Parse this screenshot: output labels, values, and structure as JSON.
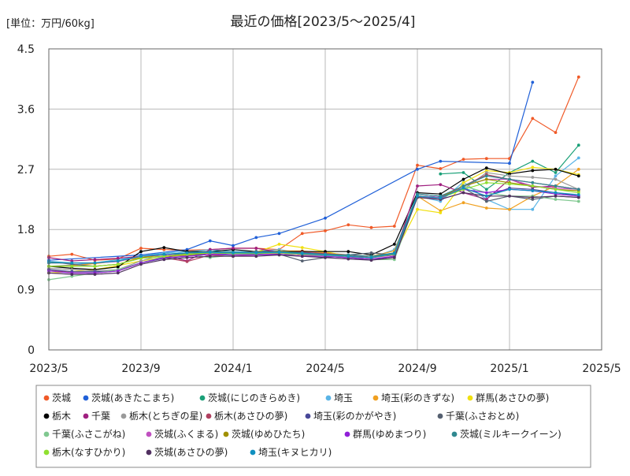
{
  "chart_data": {
    "type": "line",
    "title": "最近の価格[2023/5～2025/4]",
    "unit_label": "[単位：万円/60kg]",
    "x_ticks": [
      "2023/5",
      "2023/9",
      "2024/1",
      "2024/5",
      "2024/9",
      "2025/1",
      "2025/5"
    ],
    "y_ticks": [
      "0",
      "0.9",
      "1.8",
      "2.7",
      "3.6",
      "4.5"
    ],
    "ylim": [
      0,
      4.5
    ],
    "grid": true,
    "legend_position": "bottom",
    "x_months": [
      0,
      1,
      2,
      3,
      4,
      5,
      6,
      7,
      8,
      9,
      10,
      11,
      12,
      13,
      14,
      15,
      16,
      17,
      18,
      19,
      20,
      21,
      22,
      23
    ],
    "series": [
      {
        "name": "茨城",
        "color": "#f05a28",
        "values": [
          1.4,
          1.43,
          1.34,
          1.36,
          1.52,
          1.5,
          1.49,
          1.5,
          1.52,
          1.52,
          1.5,
          1.74,
          1.78,
          1.87,
          1.83,
          1.85,
          2.76,
          2.71,
          2.85,
          2.86,
          2.86,
          3.46,
          3.25,
          4.08
        ]
      },
      {
        "name": "茨城(あきたこまち)",
        "color": "#2060d8",
        "values": [
          1.34,
          null,
          null,
          null,
          1.42,
          null,
          1.5,
          1.63,
          1.56,
          1.68,
          1.74,
          null,
          1.97,
          null,
          null,
          null,
          2.7,
          2.82,
          null,
          null,
          2.79,
          4.0,
          null,
          null
        ]
      },
      {
        "name": "茨城(にじのきらめき)",
        "color": "#1aa078",
        "values": [
          null,
          null,
          null,
          null,
          null,
          null,
          null,
          null,
          null,
          null,
          null,
          null,
          null,
          null,
          null,
          null,
          null,
          2.63,
          2.65,
          2.4,
          2.65,
          2.82,
          2.65,
          3.06
        ]
      },
      {
        "name": "埼玉",
        "color": "#5ab4e6",
        "values": [
          1.25,
          1.27,
          1.3,
          1.35,
          1.4,
          1.45,
          1.47,
          1.5,
          1.47,
          1.47,
          1.5,
          1.45,
          1.42,
          1.4,
          1.38,
          1.5,
          2.3,
          2.22,
          2.51,
          2.25,
          2.1,
          2.1,
          2.6,
          2.87
        ]
      },
      {
        "name": "埼玉(彩のきずな)",
        "color": "#f0a020",
        "values": [
          1.25,
          1.26,
          1.29,
          1.33,
          1.38,
          1.43,
          1.44,
          1.47,
          1.46,
          1.46,
          1.48,
          1.48,
          1.45,
          1.42,
          1.4,
          1.48,
          2.3,
          2.08,
          2.2,
          2.12,
          2.1,
          2.3,
          2.45,
          2.7
        ]
      },
      {
        "name": "群馬(あさひの夢)",
        "color": "#f0e010",
        "values": [
          1.15,
          1.17,
          1.2,
          1.26,
          1.33,
          1.39,
          1.42,
          1.45,
          1.45,
          1.46,
          1.58,
          1.53,
          1.47,
          1.4,
          1.38,
          1.43,
          2.1,
          2.05,
          2.5,
          2.68,
          2.65,
          2.73,
          2.7,
          2.62
        ]
      },
      {
        "name": "栃木",
        "color": "#000000",
        "values": [
          1.25,
          1.22,
          1.2,
          1.24,
          1.47,
          1.53,
          1.47,
          1.47,
          1.5,
          1.47,
          1.47,
          1.47,
          1.47,
          1.47,
          1.42,
          1.58,
          2.35,
          2.33,
          2.55,
          2.72,
          2.63,
          2.68,
          2.7,
          2.6
        ]
      },
      {
        "name": "千葉",
        "color": "#a02080",
        "values": [
          1.38,
          1.33,
          1.35,
          1.37,
          1.4,
          1.42,
          1.33,
          1.5,
          1.52,
          1.52,
          1.46,
          1.46,
          1.44,
          1.42,
          1.38,
          1.42,
          2.45,
          2.47,
          2.35,
          2.25,
          2.55,
          2.43,
          2.45,
          2.4
        ]
      },
      {
        "name": "栃木(とちぎの星)",
        "color": "#9a9a9a",
        "values": [
          1.22,
          1.2,
          1.18,
          1.2,
          1.33,
          1.43,
          1.45,
          1.47,
          1.45,
          1.47,
          1.45,
          1.45,
          1.4,
          1.4,
          1.35,
          1.4,
          2.3,
          2.28,
          2.4,
          2.65,
          2.6,
          2.58,
          2.55,
          2.4
        ]
      },
      {
        "name": "栃木(あさひの夢)",
        "color": "#b04060",
        "values": [
          1.2,
          1.15,
          1.15,
          1.18,
          1.3,
          1.38,
          1.32,
          1.42,
          1.4,
          1.42,
          1.45,
          1.42,
          1.4,
          1.38,
          1.35,
          1.4,
          2.3,
          2.28,
          2.45,
          2.62,
          2.55,
          2.5,
          2.45,
          2.4
        ]
      },
      {
        "name": "埼玉(彩のかがやき)",
        "color": "#484898",
        "values": [
          1.2,
          1.17,
          1.17,
          1.18,
          1.3,
          1.37,
          1.4,
          1.45,
          1.42,
          1.43,
          1.45,
          1.42,
          1.4,
          1.38,
          1.35,
          1.4,
          2.3,
          2.28,
          2.42,
          2.3,
          2.42,
          2.4,
          2.35,
          2.3
        ]
      },
      {
        "name": "千葉(ふさおとめ)",
        "color": "#556070",
        "values": [
          1.32,
          1.28,
          1.25,
          1.28,
          1.37,
          1.4,
          1.45,
          1.45,
          1.45,
          1.47,
          1.43,
          1.33,
          1.38,
          1.42,
          1.45,
          1.42,
          2.33,
          2.3,
          2.42,
          2.22,
          2.3,
          2.25,
          2.3,
          2.28
        ]
      },
      {
        "name": "千葉(ふさこがね)",
        "color": "#80c890",
        "values": [
          1.05,
          1.1,
          1.15,
          1.2,
          1.3,
          1.4,
          1.43,
          1.38,
          1.42,
          1.42,
          1.42,
          1.43,
          1.4,
          1.4,
          1.35,
          1.35,
          2.28,
          2.25,
          2.45,
          2.35,
          2.3,
          2.3,
          2.25,
          2.22
        ]
      },
      {
        "name": "茨城(ふくまる)",
        "color": "#c050c0",
        "values": [
          1.3,
          1.3,
          1.3,
          1.32,
          1.4,
          1.43,
          1.4,
          1.43,
          1.42,
          1.42,
          1.45,
          1.42,
          1.42,
          1.4,
          1.38,
          1.45,
          2.3,
          2.25,
          2.45,
          2.55,
          2.55,
          2.45,
          2.42,
          2.4
        ]
      },
      {
        "name": "茨城(ゆめひたち)",
        "color": "#a09000",
        "values": [
          1.25,
          1.25,
          1.25,
          1.28,
          1.38,
          1.4,
          1.42,
          1.45,
          1.45,
          1.45,
          1.47,
          1.45,
          1.43,
          1.4,
          1.38,
          1.45,
          2.3,
          2.28,
          2.45,
          2.55,
          2.5,
          2.45,
          2.4,
          2.38
        ]
      },
      {
        "name": "群馬(ゆめまつり)",
        "color": "#9020d8",
        "values": [
          1.18,
          1.15,
          1.15,
          1.18,
          1.3,
          1.38,
          1.4,
          1.43,
          1.42,
          1.42,
          1.43,
          1.4,
          1.4,
          1.38,
          1.36,
          1.4,
          2.3,
          2.28,
          2.4,
          2.35,
          2.4,
          2.38,
          2.33,
          2.3
        ]
      },
      {
        "name": "茨城(ミルキークイーン)",
        "color": "#308890",
        "values": [
          1.3,
          1.3,
          1.3,
          1.33,
          1.4,
          1.43,
          1.45,
          1.47,
          1.46,
          1.46,
          1.47,
          1.45,
          1.43,
          1.42,
          1.4,
          1.45,
          2.33,
          2.3,
          2.45,
          2.6,
          2.55,
          2.5,
          2.45,
          2.4
        ]
      },
      {
        "name": "栃木(なすひかり)",
        "color": "#90e030",
        "values": [
          1.25,
          1.25,
          1.25,
          1.28,
          1.37,
          1.4,
          1.43,
          1.45,
          1.44,
          1.44,
          1.45,
          1.43,
          1.42,
          1.4,
          1.38,
          1.43,
          2.3,
          2.27,
          2.4,
          2.5,
          2.48,
          2.45,
          2.4,
          2.35
        ]
      },
      {
        "name": "茨城(あさひの夢)",
        "color": "#503060",
        "values": [
          1.15,
          1.13,
          1.13,
          1.15,
          1.28,
          1.35,
          1.38,
          1.4,
          1.4,
          1.4,
          1.42,
          1.4,
          1.38,
          1.36,
          1.34,
          1.38,
          2.28,
          2.25,
          2.35,
          2.3,
          2.3,
          2.28,
          2.3,
          2.28
        ]
      },
      {
        "name": "埼玉(キヌヒカリ)",
        "color": "#1090c0",
        "values": [
          1.32,
          1.3,
          1.3,
          1.33,
          1.4,
          1.43,
          1.45,
          1.46,
          1.45,
          1.45,
          1.46,
          1.44,
          1.42,
          1.4,
          1.38,
          1.44,
          2.3,
          2.27,
          2.42,
          2.3,
          2.4,
          2.38,
          2.35,
          2.32
        ]
      }
    ]
  }
}
